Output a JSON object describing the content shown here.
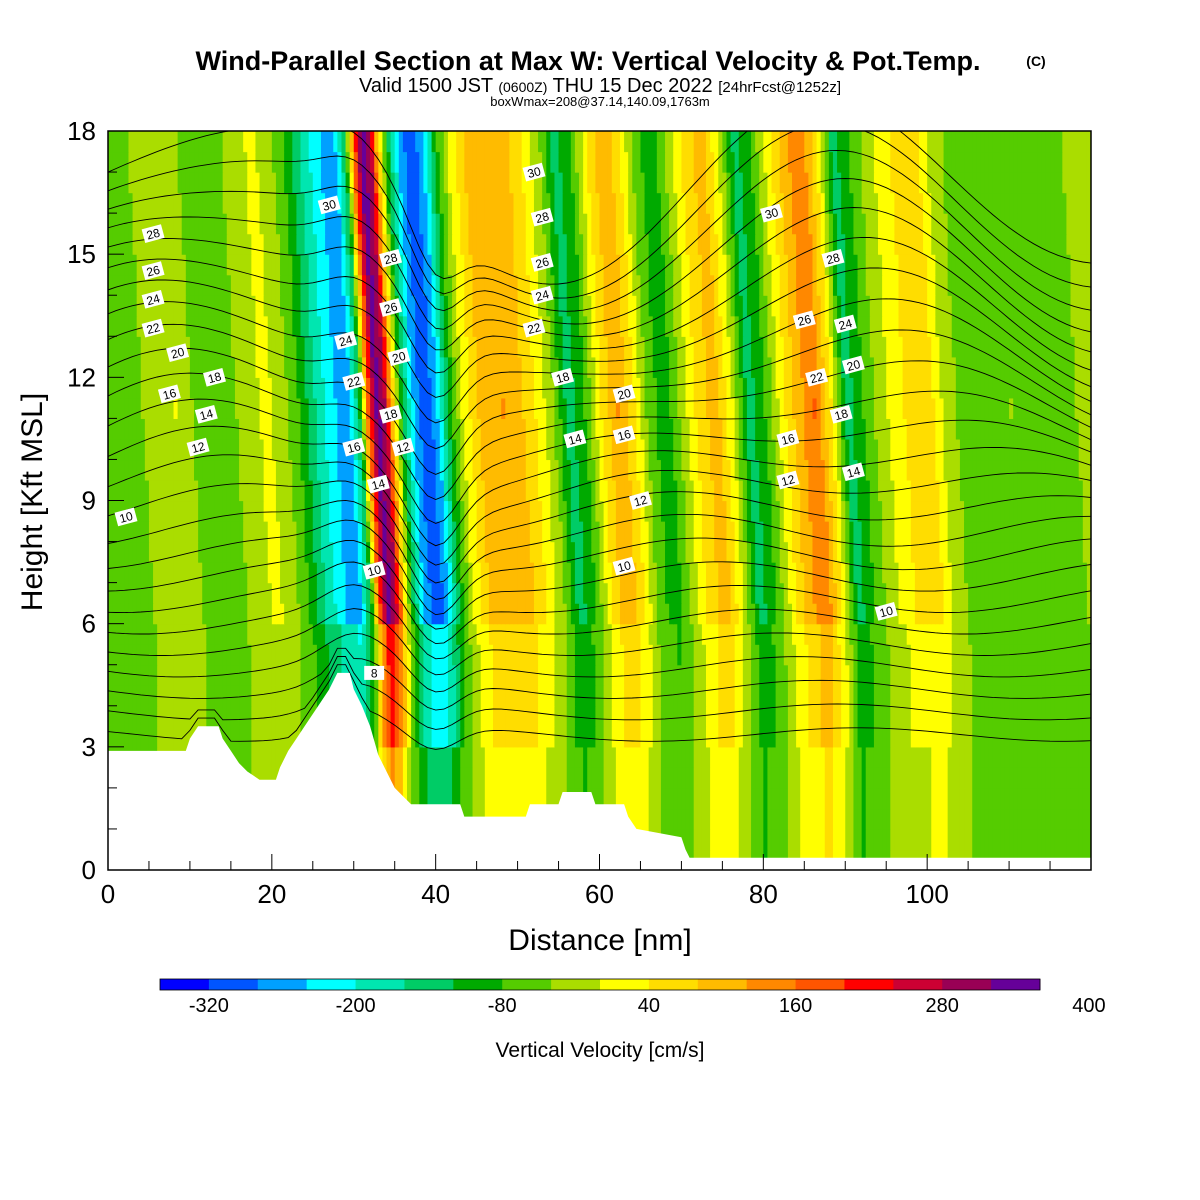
{
  "chart_data": {
    "type": "heatmap",
    "title": {
      "main": "Wind-Parallel Section at Max W: Vertical Velocity & Pot.Temp.",
      "copyright": "(C)",
      "valid_prefix": "Valid 1500 JST",
      "valid_utc": "(0600Z)",
      "valid_date": "THU 15 Dec 2022",
      "forecast": "[24hrFcst@1252z]",
      "box": "boxWmax=208@37.14,140.09,1763m"
    },
    "xlabel": "Distance [nm]",
    "ylabel": "Height [Kft MSL]",
    "xlim": [
      0,
      120
    ],
    "ylim": [
      0,
      18
    ],
    "x_ticks": [
      "0",
      "20",
      "40",
      "60",
      "80",
      "100"
    ],
    "y_ticks": [
      "0",
      "3",
      "6",
      "9",
      "12",
      "15",
      "18"
    ],
    "colorbar": {
      "title": "Vertical Velocity [cm/s]",
      "tick_labels": [
        "-320",
        "-200",
        "-80",
        "40",
        "160",
        "280",
        "400"
      ],
      "colors": [
        "#0000ff",
        "#0055ff",
        "#00a0ff",
        "#00ffff",
        "#00e6b0",
        "#00cc66",
        "#00aa00",
        "#55cc00",
        "#aadd00",
        "#ffff00",
        "#ffdd00",
        "#ffbb00",
        "#ff8800",
        "#ff5500",
        "#ff0000",
        "#cc0033",
        "#990055",
        "#660099"
      ]
    },
    "vertical_velocity_columns": [
      {
        "x": 0,
        "w": 0
      },
      {
        "x": 4,
        "w": -20
      },
      {
        "x": 7,
        "w": 10
      },
      {
        "x": 10,
        "w": 40
      },
      {
        "x": 12,
        "w": 0
      },
      {
        "x": 15,
        "w": -40
      },
      {
        "x": 18,
        "w": 10
      },
      {
        "x": 21,
        "w": 50
      },
      {
        "x": 23,
        "w": 20
      },
      {
        "x": 25,
        "w": -40
      },
      {
        "x": 27,
        "w": -120
      },
      {
        "x": 29,
        "w": -190
      },
      {
        "x": 31,
        "w": -230
      },
      {
        "x": 32.5,
        "w": -80
      },
      {
        "x": 33.5,
        "w": 200
      },
      {
        "x": 34.5,
        "w": 380
      },
      {
        "x": 35.5,
        "w": 330
      },
      {
        "x": 36.5,
        "w": 120
      },
      {
        "x": 37.5,
        "w": -60
      },
      {
        "x": 39,
        "w": -200
      },
      {
        "x": 40.5,
        "w": -280
      },
      {
        "x": 42,
        "w": -200
      },
      {
        "x": 43.5,
        "w": -60
      },
      {
        "x": 45,
        "w": 40
      },
      {
        "x": 47,
        "w": 120
      },
      {
        "x": 50,
        "w": 160
      },
      {
        "x": 53,
        "w": 110
      },
      {
        "x": 56,
        "w": 10
      },
      {
        "x": 58,
        "w": -100
      },
      {
        "x": 60,
        "w": -40
      },
      {
        "x": 62,
        "w": 80
      },
      {
        "x": 64,
        "w": 160
      },
      {
        "x": 66,
        "w": 80
      },
      {
        "x": 68,
        "w": -30
      },
      {
        "x": 70,
        "w": -60
      },
      {
        "x": 72,
        "w": 20
      },
      {
        "x": 74,
        "w": 100
      },
      {
        "x": 76,
        "w": 140
      },
      {
        "x": 78,
        "w": 40
      },
      {
        "x": 80,
        "w": -100
      },
      {
        "x": 82,
        "w": -40
      },
      {
        "x": 84,
        "w": 60
      },
      {
        "x": 86,
        "w": 140
      },
      {
        "x": 88,
        "w": 200
      },
      {
        "x": 90,
        "w": 80
      },
      {
        "x": 92,
        "w": -100
      },
      {
        "x": 94,
        "w": -40
      },
      {
        "x": 96,
        "w": 20
      },
      {
        "x": 99,
        "w": 80
      },
      {
        "x": 102,
        "w": 100
      },
      {
        "x": 104,
        "w": 20
      },
      {
        "x": 108,
        "w": -40
      },
      {
        "x": 112,
        "w": 0
      },
      {
        "x": 116,
        "w": -30
      },
      {
        "x": 120,
        "w": 0
      }
    ],
    "terrain": [
      {
        "x": 0,
        "h": 2.9
      },
      {
        "x": 9.5,
        "h": 2.9
      },
      {
        "x": 10,
        "h": 3.2
      },
      {
        "x": 11,
        "h": 3.5
      },
      {
        "x": 13.5,
        "h": 3.5
      },
      {
        "x": 14,
        "h": 3.2
      },
      {
        "x": 15,
        "h": 2.9
      },
      {
        "x": 16,
        "h": 2.6
      },
      {
        "x": 17,
        "h": 2.4
      },
      {
        "x": 18.5,
        "h": 2.2
      },
      {
        "x": 20.5,
        "h": 2.2
      },
      {
        "x": 21,
        "h": 2.5
      },
      {
        "x": 22,
        "h": 2.9
      },
      {
        "x": 23,
        "h": 3.2
      },
      {
        "x": 24,
        "h": 3.5
      },
      {
        "x": 25,
        "h": 3.8
      },
      {
        "x": 26,
        "h": 4.1
      },
      {
        "x": 27,
        "h": 4.4
      },
      {
        "x": 28,
        "h": 4.8
      },
      {
        "x": 29.5,
        "h": 4.8
      },
      {
        "x": 30,
        "h": 4.4
      },
      {
        "x": 31,
        "h": 4.0
      },
      {
        "x": 32,
        "h": 3.5
      },
      {
        "x": 33,
        "h": 2.8
      },
      {
        "x": 34,
        "h": 2.4
      },
      {
        "x": 35,
        "h": 2.0
      },
      {
        "x": 36,
        "h": 1.8
      },
      {
        "x": 37,
        "h": 1.6
      },
      {
        "x": 43,
        "h": 1.6
      },
      {
        "x": 43.5,
        "h": 1.3
      },
      {
        "x": 51,
        "h": 1.3
      },
      {
        "x": 51.5,
        "h": 1.6
      },
      {
        "x": 55,
        "h": 1.6
      },
      {
        "x": 55.5,
        "h": 1.9
      },
      {
        "x": 59,
        "h": 1.9
      },
      {
        "x": 59.5,
        "h": 1.6
      },
      {
        "x": 63,
        "h": 1.6
      },
      {
        "x": 63.5,
        "h": 1.3
      },
      {
        "x": 64.5,
        "h": 1.0
      },
      {
        "x": 70,
        "h": 0.8
      },
      {
        "x": 70.5,
        "h": 0.5
      },
      {
        "x": 71,
        "h": 0.3
      },
      {
        "x": 120,
        "h": 0.3
      }
    ],
    "theta_contour_labels": [
      {
        "text": "28",
        "x": 5.5,
        "y": 15.5
      },
      {
        "text": "26",
        "x": 5.5,
        "y": 14.6
      },
      {
        "text": "24",
        "x": 5.5,
        "y": 13.9
      },
      {
        "text": "22",
        "x": 5.5,
        "y": 13.2
      },
      {
        "text": "20",
        "x": 8.5,
        "y": 12.6
      },
      {
        "text": "18",
        "x": 13,
        "y": 12.0
      },
      {
        "text": "16",
        "x": 7.5,
        "y": 11.6
      },
      {
        "text": "14",
        "x": 12,
        "y": 11.1
      },
      {
        "text": "12",
        "x": 11,
        "y": 10.3
      },
      {
        "text": "10",
        "x": 2.2,
        "y": 8.6
      },
      {
        "text": "30",
        "x": 27,
        "y": 16.2
      },
      {
        "text": "24",
        "x": 29,
        "y": 12.9
      },
      {
        "text": "22",
        "x": 30,
        "y": 11.9
      },
      {
        "text": "16",
        "x": 30,
        "y": 10.3
      },
      {
        "text": "10",
        "x": 32.5,
        "y": 7.3
      },
      {
        "text": "8",
        "x": 32.5,
        "y": 4.8
      },
      {
        "text": "28",
        "x": 34.5,
        "y": 14.9
      },
      {
        "text": "26",
        "x": 34.5,
        "y": 13.7
      },
      {
        "text": "20",
        "x": 35.5,
        "y": 12.5
      },
      {
        "text": "18",
        "x": 34.5,
        "y": 11.1
      },
      {
        "text": "12",
        "x": 36,
        "y": 10.3
      },
      {
        "text": "14",
        "x": 33,
        "y": 9.4
      },
      {
        "text": "30",
        "x": 52,
        "y": 17.0
      },
      {
        "text": "28",
        "x": 53,
        "y": 15.9
      },
      {
        "text": "26",
        "x": 53,
        "y": 14.8
      },
      {
        "text": "24",
        "x": 53,
        "y": 14.0
      },
      {
        "text": "22",
        "x": 52,
        "y": 13.2
      },
      {
        "text": "18",
        "x": 55.5,
        "y": 12.0
      },
      {
        "text": "14",
        "x": 57,
        "y": 10.5
      },
      {
        "text": "20",
        "x": 63,
        "y": 11.6
      },
      {
        "text": "16",
        "x": 63,
        "y": 10.6
      },
      {
        "text": "12",
        "x": 65,
        "y": 9.0
      },
      {
        "text": "10",
        "x": 63,
        "y": 7.4
      },
      {
        "text": "30",
        "x": 81,
        "y": 16.0
      },
      {
        "text": "28",
        "x": 88.5,
        "y": 14.9
      },
      {
        "text": "26",
        "x": 85,
        "y": 13.4
      },
      {
        "text": "24",
        "x": 90,
        "y": 13.3
      },
      {
        "text": "22",
        "x": 86.5,
        "y": 12.0
      },
      {
        "text": "20",
        "x": 91,
        "y": 12.3
      },
      {
        "text": "18",
        "x": 89.5,
        "y": 11.1
      },
      {
        "text": "16",
        "x": 83,
        "y": 10.5
      },
      {
        "text": "12",
        "x": 83,
        "y": 9.5
      },
      {
        "text": "14",
        "x": 91,
        "y": 9.7
      },
      {
        "text": "10",
        "x": 95,
        "y": 6.3
      }
    ],
    "grid": false
  }
}
